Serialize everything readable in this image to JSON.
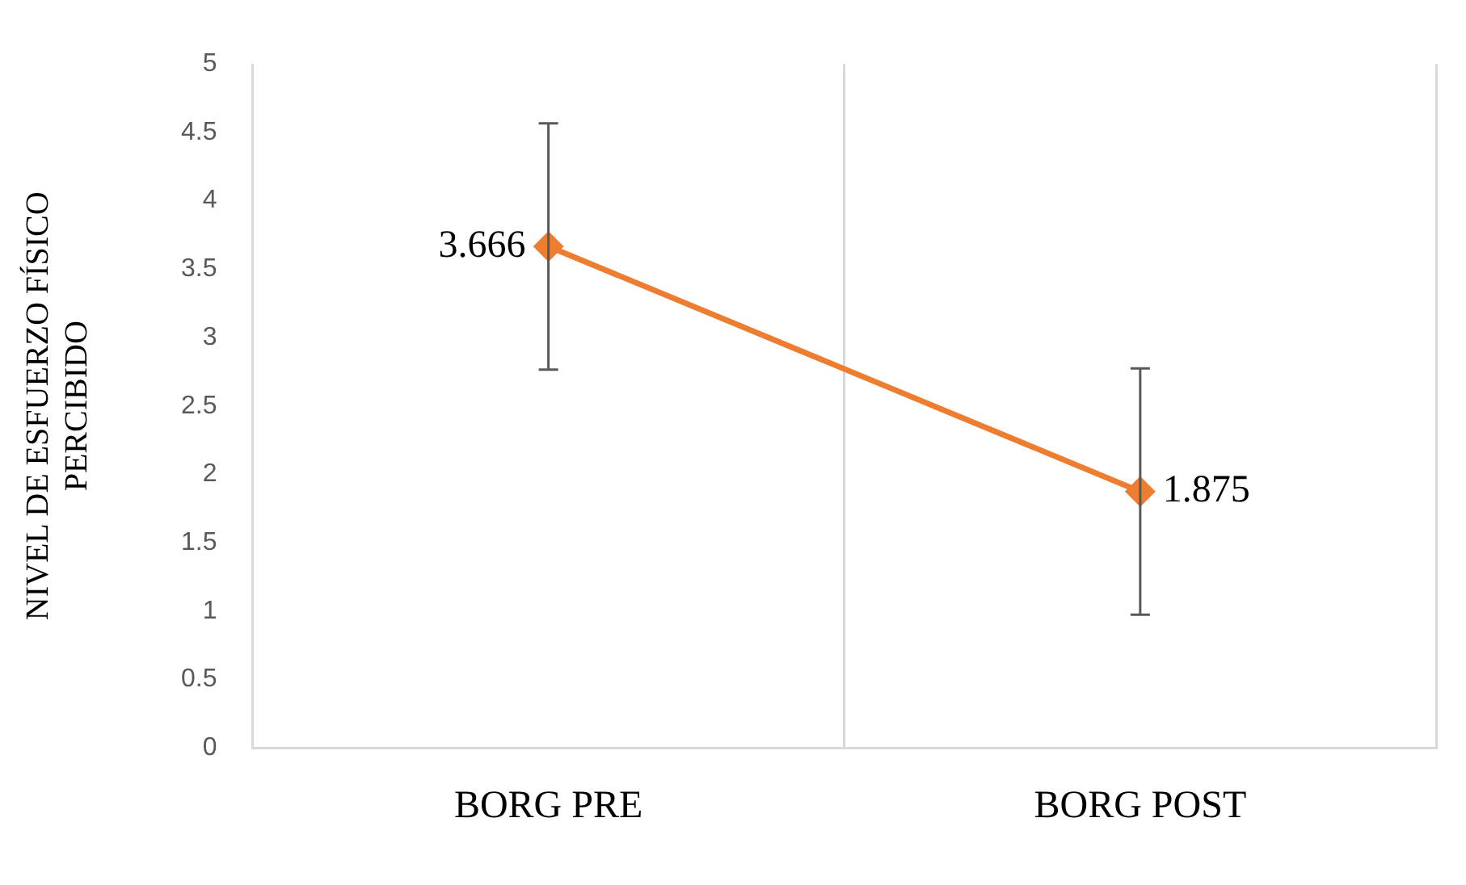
{
  "chart_data": {
    "type": "line",
    "categories": [
      "BORG PRE",
      "BORG POST"
    ],
    "ylabel": "NIVEL DE ESFUERZO FÍSICO PERCIBIDO",
    "ylim": [
      0,
      5
    ],
    "yticks": [
      0,
      0.5,
      1,
      1.5,
      2,
      2.5,
      3,
      3.5,
      4,
      4.5,
      5
    ],
    "grid": "x",
    "legend": false,
    "marker": "diamond",
    "line_style": "solid",
    "data_labels": true,
    "series": [
      {
        "color": "#ed7d31",
        "values": [
          3.666,
          1.875
        ],
        "errors": [
          0.9,
          0.9
        ]
      }
    ]
  }
}
